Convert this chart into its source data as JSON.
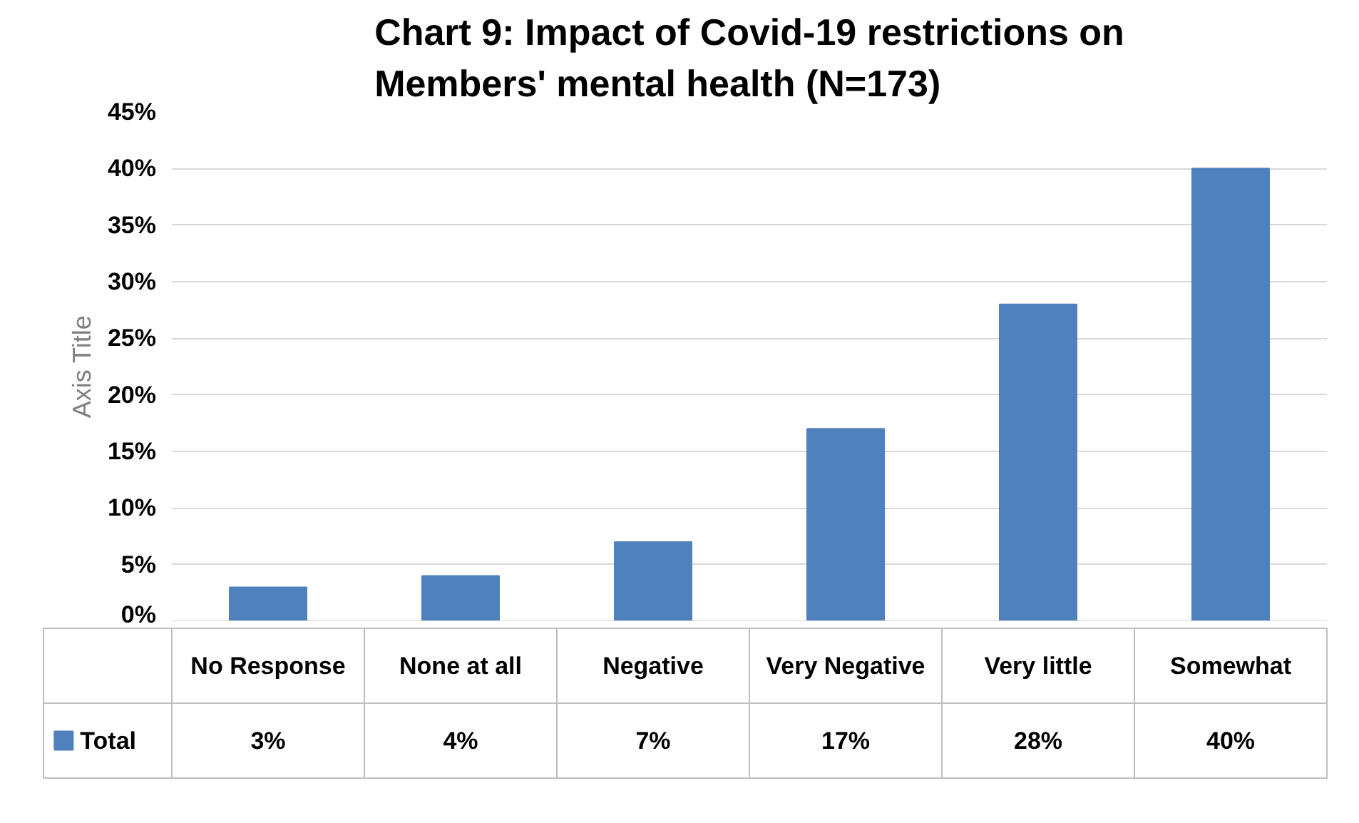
{
  "chart_data": {
    "type": "bar",
    "title": "Chart 9: Impact of Covid-19 restrictions on Members' mental health (N=173)",
    "ylabel": "Axis Title",
    "categories": [
      "No Response",
      "None at all",
      "Negative",
      "Very Negative",
      "Very little",
      "Somewhat"
    ],
    "series": [
      {
        "name": "Total",
        "color": "#4f81bd",
        "values": [
          3,
          4,
          7,
          17,
          28,
          40
        ],
        "value_labels": [
          "3%",
          "4%",
          "7%",
          "17%",
          "28%",
          "40%"
        ]
      }
    ],
    "ylim": [
      0,
      45
    ],
    "yticks": [
      {
        "value": 0,
        "label": "0%"
      },
      {
        "value": 5,
        "label": "5%"
      },
      {
        "value": 10,
        "label": "10%"
      },
      {
        "value": 15,
        "label": "15%"
      },
      {
        "value": 20,
        "label": "20%"
      },
      {
        "value": 25,
        "label": "25%"
      },
      {
        "value": 30,
        "label": "30%"
      },
      {
        "value": 35,
        "label": "35%"
      },
      {
        "value": 40,
        "label": "40%"
      },
      {
        "value": 45,
        "label": "45%"
      }
    ],
    "grid": "y",
    "legend": "bottom"
  }
}
